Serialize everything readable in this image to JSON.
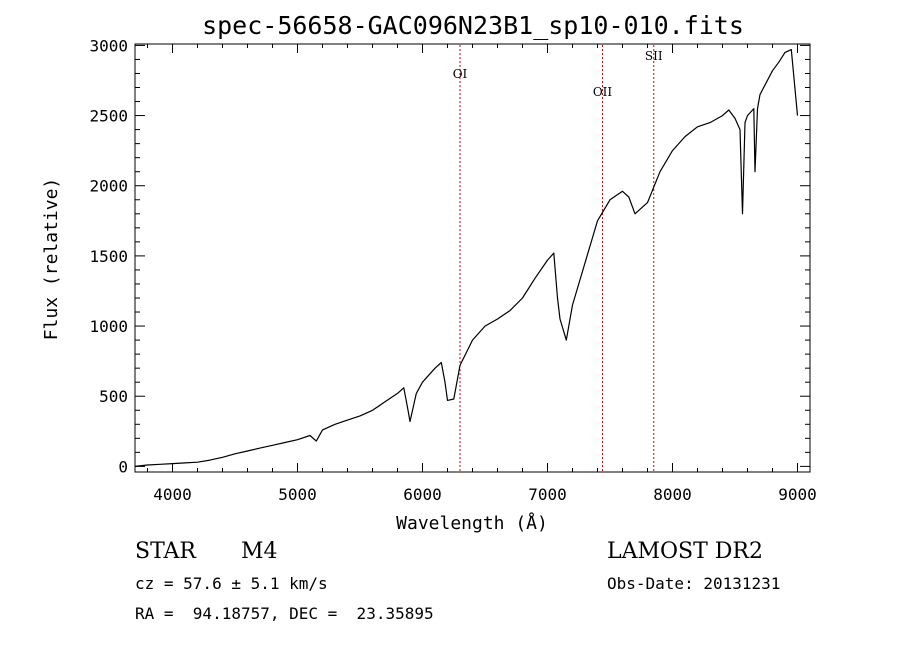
{
  "chart_data": {
    "type": "line",
    "title": "spec-56658-GAC096N23B1_sp10-010.fits",
    "xlabel": "Wavelength (Å)",
    "ylabel": "Flux (relative)",
    "xlim": [
      3700,
      9100
    ],
    "ylim": [
      -40,
      3010
    ],
    "xticks": [
      4000,
      5000,
      6000,
      7000,
      8000,
      9000
    ],
    "yticks": [
      0,
      500,
      1000,
      1500,
      2000,
      2500,
      3000
    ],
    "grid": false,
    "line_color": "#000000",
    "marker_color": "#cc0000",
    "lines": [
      {
        "label": "OI",
        "x": 6300
      },
      {
        "label": "OII",
        "x": 7440
      },
      {
        "label": "SII",
        "x": 7850
      }
    ],
    "series": [
      {
        "x": [
          3700,
          3800,
          3900,
          4000,
          4100,
          4200,
          4300,
          4400,
          4500,
          4600,
          4700,
          4800,
          4900,
          5000,
          5100,
          5150,
          5200,
          5300,
          5400,
          5500,
          5600,
          5700,
          5800,
          5850,
          5880,
          5900,
          5950,
          6000,
          6100,
          6150,
          6180,
          6200,
          6250,
          6300,
          6400,
          6500,
          6600,
          6700,
          6800,
          6900,
          7000,
          7050,
          7080,
          7100,
          7150,
          7200,
          7300,
          7400,
          7500,
          7600,
          7650,
          7700,
          7800,
          7900,
          8000,
          8100,
          8200,
          8300,
          8400,
          8450,
          8500,
          8540,
          8560,
          8580,
          8600,
          8650,
          8660,
          8680,
          8700,
          8800,
          8850,
          8900,
          8950,
          9000
        ],
        "values": [
          0,
          10,
          15,
          20,
          25,
          30,
          45,
          65,
          90,
          110,
          130,
          150,
          170,
          190,
          220,
          180,
          260,
          300,
          330,
          360,
          400,
          460,
          520,
          560,
          420,
          320,
          520,
          600,
          700,
          740,
          600,
          470,
          480,
          720,
          900,
          1000,
          1050,
          1110,
          1200,
          1340,
          1470,
          1520,
          1200,
          1050,
          900,
          1150,
          1450,
          1750,
          1900,
          1960,
          1920,
          1800,
          1880,
          2100,
          2250,
          2350,
          2420,
          2450,
          2500,
          2540,
          2480,
          2400,
          1800,
          2450,
          2500,
          2550,
          2100,
          2550,
          2650,
          2820,
          2880,
          2950,
          2970,
          2500
        ]
      }
    ]
  },
  "info": {
    "class_label": "STAR",
    "subclass": "M4",
    "survey": "LAMOST DR2",
    "cz_text": "cz = 57.6 ± 5.1 km/s",
    "obs_date_text": "Obs-Date: 20131231",
    "coords_text": "RA =  94.18757, DEC =  23.35895"
  }
}
